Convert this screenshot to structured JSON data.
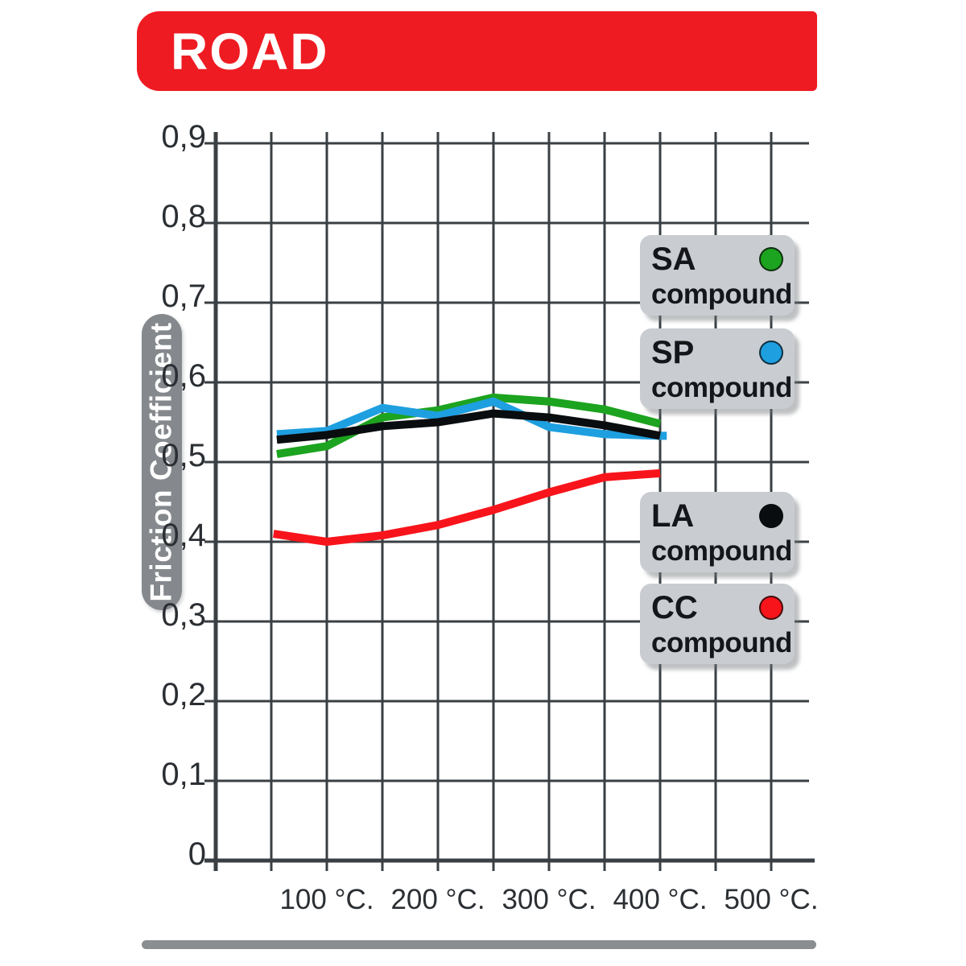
{
  "banner": {
    "title": "ROAD",
    "color": "#ee1b22"
  },
  "axis": {
    "y_label": "Friction Coefficient",
    "y_ticks": [
      "0,9",
      "0,8",
      "0,7",
      "0,6",
      "0,5",
      "0,4",
      "0,3",
      "0,2",
      "0,1",
      "0"
    ],
    "x_ticks": [
      "100 °C.",
      "200 °C.",
      "300 °C.",
      "400 °C.",
      "500 °C."
    ]
  },
  "legend": [
    {
      "code": "SA",
      "label": "compound",
      "color": "#1ca31f"
    },
    {
      "code": "SP",
      "label": "compound",
      "color": "#1e9fe0"
    },
    {
      "code": "LA",
      "label": "compound",
      "color": "#0a0d0f"
    },
    {
      "code": "CC",
      "label": "compound",
      "color": "#f8141b"
    }
  ],
  "chart_data": {
    "type": "line",
    "title": "ROAD",
    "xlabel": "",
    "ylabel": "Friction Coefficient",
    "xlim": [
      0,
      533
    ],
    "ylim": [
      0,
      0.9
    ],
    "x_tick_values": [
      100,
      200,
      300,
      400,
      500
    ],
    "x_gridline_step": 50,
    "y_gridline_step": 0.1,
    "grid": true,
    "legend_position": "right-overlay",
    "series": [
      {
        "name": "SA compound",
        "color": "#1ca31f",
        "x": [
          55,
          100,
          150,
          200,
          250,
          300,
          350,
          400
        ],
        "y": [
          0.51,
          0.52,
          0.556,
          0.565,
          0.581,
          0.576,
          0.566,
          0.548
        ]
      },
      {
        "name": "SP compound",
        "color": "#1e9fe0",
        "x": [
          55,
          100,
          150,
          200,
          250,
          300,
          350,
          400,
          406
        ],
        "y": [
          0.535,
          0.539,
          0.568,
          0.558,
          0.576,
          0.544,
          0.535,
          0.533,
          0.533
        ]
      },
      {
        "name": "LA compound",
        "color": "#0a0d0f",
        "x": [
          55,
          100,
          150,
          200,
          250,
          300,
          350,
          400
        ],
        "y": [
          0.528,
          0.534,
          0.545,
          0.55,
          0.561,
          0.556,
          0.546,
          0.533
        ]
      },
      {
        "name": "CC compound",
        "color": "#f8141b",
        "x": [
          52,
          100,
          150,
          200,
          250,
          300,
          350,
          400
        ],
        "y": [
          0.41,
          0.4,
          0.408,
          0.421,
          0.44,
          0.462,
          0.481,
          0.486
        ]
      }
    ]
  }
}
